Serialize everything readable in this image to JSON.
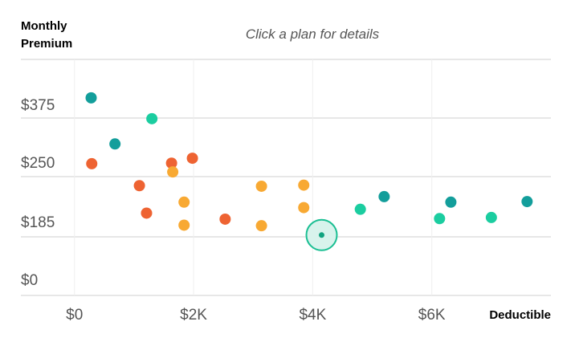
{
  "header": {
    "ylabel_line1": "Monthly",
    "ylabel_line2": "Premium",
    "hint": "Click a plan for details",
    "xlabel": "Deductible"
  },
  "colors": {
    "teal_dark": "#139e9b",
    "teal_light": "#1bcda0",
    "orange_red": "#ee6332",
    "orange_yellow": "#f8a933",
    "gridline": "#dddddd",
    "selected_fill": "#d8f3ec",
    "selected_stroke": "#1bbf93",
    "selected_dot": "#11a37f"
  },
  "chart_data": {
    "type": "scatter",
    "xlabel": "Deductible",
    "ylabel": "Monthly Premium",
    "x_ticks": [
      {
        "value": 0,
        "label": "$0"
      },
      {
        "value": 2000,
        "label": "$2K"
      },
      {
        "value": 4000,
        "label": "$4K"
      },
      {
        "value": 6000,
        "label": "$6K"
      }
    ],
    "y_ticks": [
      {
        "value": 0,
        "label": "$0"
      },
      {
        "value": 1,
        "label": "$185"
      },
      {
        "value": 2,
        "label": "$250"
      },
      {
        "value": 3,
        "label": "$375"
      }
    ],
    "xlim": [
      -900,
      8000
    ],
    "ylim": [
      -0.3,
      4
    ],
    "grid": true,
    "series": [
      {
        "color": "#139e9b",
        "points": [
          {
            "x": 280,
            "y": 3.3
          },
          {
            "x": 680,
            "y": 2.46
          },
          {
            "x": 5200,
            "y": 1.5
          },
          {
            "x": 6320,
            "y": 1.4
          },
          {
            "x": 7600,
            "y": 1.41
          }
        ]
      },
      {
        "color": "#1bcda0",
        "points": [
          {
            "x": 1300,
            "y": 2.92
          },
          {
            "x": 4800,
            "y": 1.27
          },
          {
            "x": 6130,
            "y": 1.1
          },
          {
            "x": 7000,
            "y": 1.12
          }
        ]
      },
      {
        "color": "#ee6332",
        "points": [
          {
            "x": 290,
            "y": 2.1
          },
          {
            "x": 1090,
            "y": 1.7
          },
          {
            "x": 1630,
            "y": 2.11
          },
          {
            "x": 1980,
            "y": 2.2
          },
          {
            "x": 1210,
            "y": 1.2
          },
          {
            "x": 2530,
            "y": 1.09
          }
        ]
      },
      {
        "color": "#f8a933",
        "points": [
          {
            "x": 1650,
            "y": 1.95
          },
          {
            "x": 1840,
            "y": 1.4
          },
          {
            "x": 1840,
            "y": 0.98
          },
          {
            "x": 3140,
            "y": 1.69
          },
          {
            "x": 3140,
            "y": 0.97
          },
          {
            "x": 3850,
            "y": 1.71
          },
          {
            "x": 3850,
            "y": 1.3
          }
        ]
      }
    ],
    "selected": {
      "x": 4150,
      "y": 0.8
    }
  }
}
